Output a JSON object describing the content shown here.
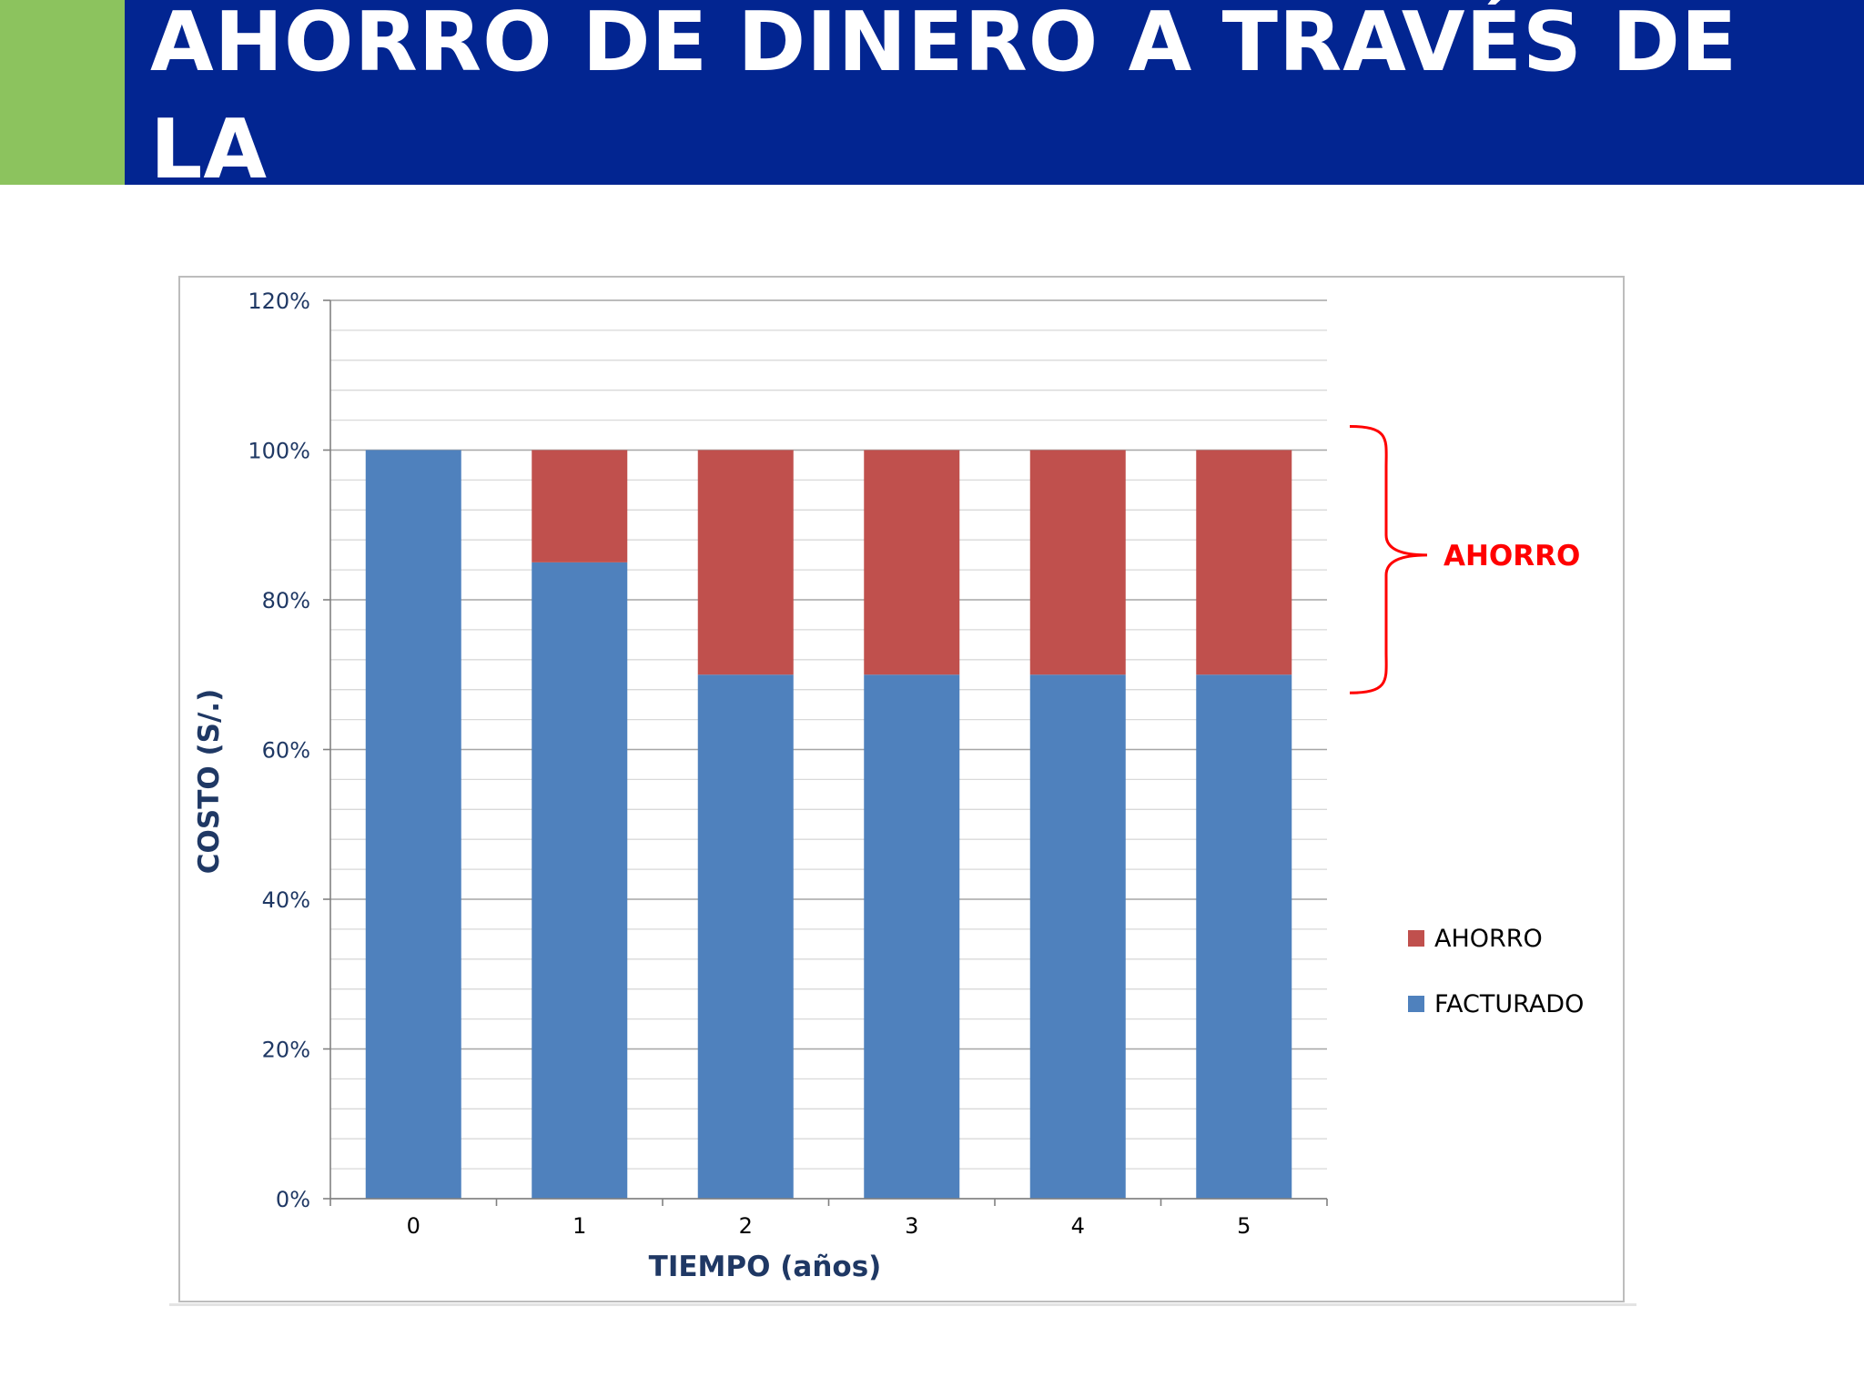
{
  "slide": {
    "title": "AHORRO DE DINERO A TRAVÉS DE LA\nEFICIENCIA ENERGÉTICA"
  },
  "colors": {
    "accent_green": "#8cc35e",
    "title_band": "#022591",
    "title_text": "#ffffff",
    "facturado": "#4f81bd",
    "ahorro": "#c0504d",
    "axis_text": "#1f3864",
    "annotation": "#ff0000",
    "gridline": "#a6a6a6",
    "minor_gridline": "#d9d9d9"
  },
  "chart_data": {
    "type": "bar",
    "stacked": true,
    "categories": [
      "0",
      "1",
      "2",
      "3",
      "4",
      "5"
    ],
    "series": [
      {
        "name": "FACTURADO",
        "values": [
          100,
          85,
          70,
          70,
          70,
          70
        ]
      },
      {
        "name": "AHORRO",
        "values": [
          0,
          15,
          30,
          30,
          30,
          30
        ]
      }
    ],
    "ylim": [
      0,
      120
    ],
    "yticks": [
      0,
      20,
      40,
      60,
      80,
      100,
      120
    ],
    "ytick_labels": [
      "0%",
      "20%",
      "40%",
      "60%",
      "80%",
      "100%",
      "120%"
    ],
    "xlabel": "TIEMPO (años)",
    "ylabel": "COSTO (S/.)",
    "grid": true,
    "legend": {
      "position": "right",
      "entries": [
        "AHORRO",
        "FACTURADO"
      ]
    },
    "annotation": {
      "text": "AHORRO",
      "type": "right-brace",
      "range": [
        70,
        100
      ]
    }
  }
}
